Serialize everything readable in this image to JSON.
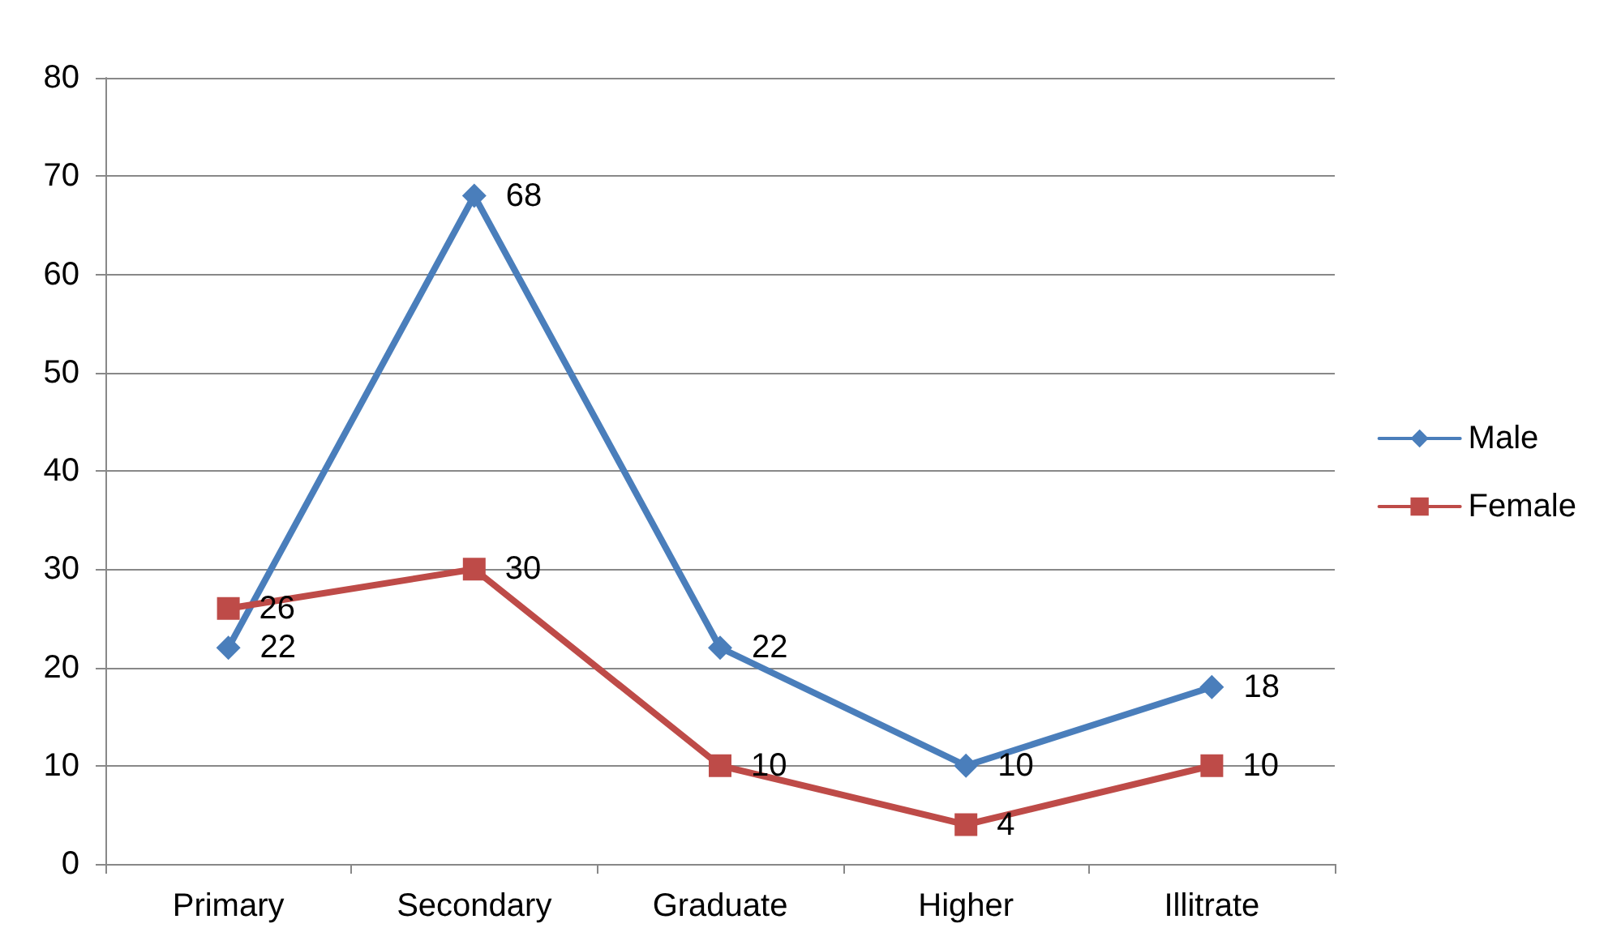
{
  "chart_data": {
    "type": "line",
    "categories": [
      "Primary",
      "Secondary",
      "Graduate",
      "Higher",
      "Illitrate"
    ],
    "series": [
      {
        "name": "Male",
        "color": "#4a7ebb",
        "values": [
          22,
          68,
          22,
          10,
          18
        ],
        "marker": "diamond"
      },
      {
        "name": "Female",
        "color": "#be4b48",
        "values": [
          26,
          30,
          10,
          4,
          10
        ],
        "marker": "square"
      }
    ],
    "ylim": [
      0,
      80
    ],
    "yticks": [
      0,
      10,
      20,
      30,
      40,
      50,
      60,
      70,
      80
    ],
    "grid": "y",
    "legend": "right",
    "data_labels": true,
    "line_style": "solid"
  }
}
